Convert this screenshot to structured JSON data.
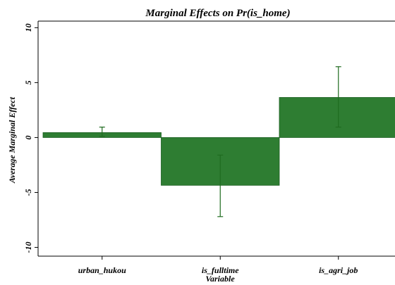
{
  "chart_data": {
    "type": "bar",
    "title": "Marginal Effects on Pr(is_home)",
    "xlabel": "Variable",
    "ylabel": "Average Marginal Effect",
    "categories": [
      "urban_hukou",
      "is_fulltime",
      "is_agri_job"
    ],
    "values": [
      0.45,
      -4.35,
      3.65
    ],
    "error_low": [
      0.1,
      -7.2,
      0.95
    ],
    "error_high": [
      0.95,
      -1.6,
      6.45
    ],
    "ylim": [
      -10.8,
      10.6
    ],
    "yticks": [
      -10,
      -5,
      0,
      5,
      10
    ],
    "grid": false,
    "legend": "none",
    "bar_color": "#2e7d32",
    "error_color": "#1f6b1f"
  }
}
